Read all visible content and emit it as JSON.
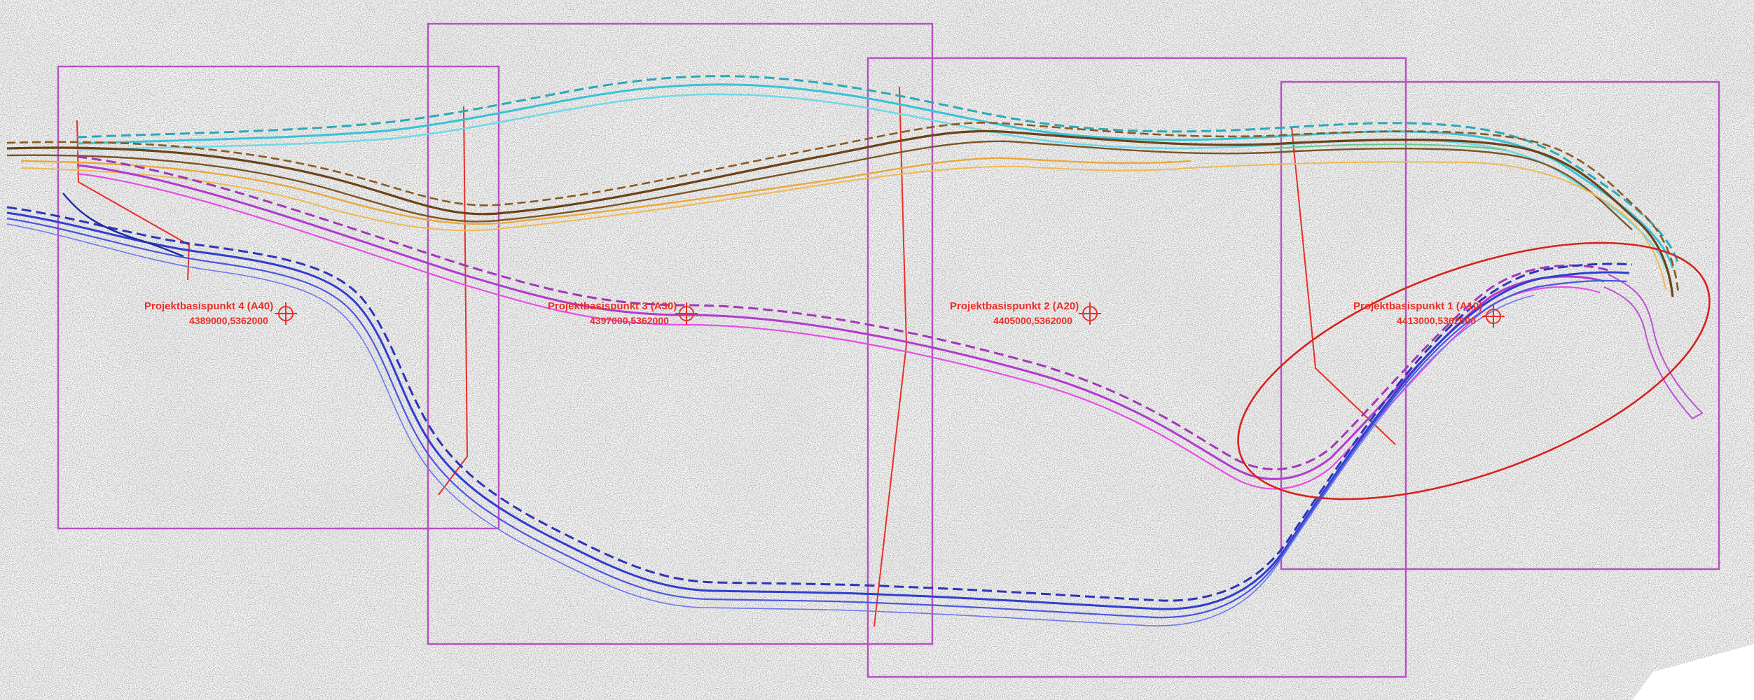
{
  "map": {
    "base_points": [
      {
        "name": "Projektbasispunkt 4 (A40)",
        "coords": "4389000,5362000"
      },
      {
        "name": "Projektbasispunkt 3 (A30)",
        "coords": "4397000,5362000"
      },
      {
        "name": "Projektbasispunkt 2 (A20)",
        "coords": "4405000,5362000"
      },
      {
        "name": "Projektbasispunkt 1 (A10)",
        "coords": "4413000,5362000"
      }
    ],
    "colors": {
      "frame": "#b452c0",
      "blue_route": "#2f3fd0",
      "magenta_route": "#e64ee6",
      "cyan_route": "#36c3d8",
      "brown_route": "#8a5a22",
      "orange_route": "#e9a93a",
      "marker": "#e8302a",
      "background_texture": "#d8d8d8"
    }
  }
}
